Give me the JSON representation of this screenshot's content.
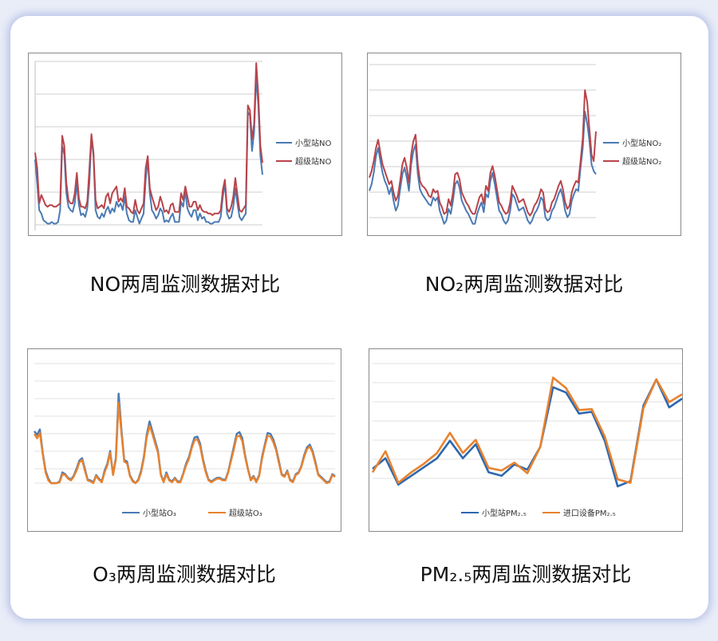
{
  "colors": {
    "blue_dark": "#4a7ab4",
    "red_dark": "#b8444a",
    "blue": "#2e68b0",
    "orange": "#e8822e",
    "grid": "#d2d2d2",
    "grid2": "#e4e4e4"
  },
  "captions": [
    "NO两周监测数据对比",
    "NO₂两周监测数据对比",
    "O₃两周监测数据对比",
    "PM₂.₅两周监测数据对比"
  ],
  "chart_data": [
    {
      "type": "line",
      "title": "",
      "legend_position": "right",
      "grid": true,
      "ylim": [
        0,
        100
      ],
      "series": [
        {
          "name": "小型站NO",
          "color": "#4a7ab4",
          "values": [
            42,
            28,
            12,
            10,
            6,
            5,
            4,
            4,
            5,
            4,
            4,
            5,
            12,
            50,
            45,
            22,
            14,
            12,
            11,
            16,
            28,
            15,
            9,
            10,
            8,
            13,
            28,
            55,
            44,
            12,
            8,
            7,
            10,
            8,
            12,
            14,
            10,
            13,
            11,
            17,
            14,
            16,
            12,
            20,
            10,
            6,
            5,
            5,
            12,
            8,
            4,
            7,
            10,
            30,
            42,
            22,
            12,
            10,
            7,
            9,
            13,
            11,
            5,
            6,
            5,
            8,
            10,
            5,
            5,
            5,
            17,
            14,
            23,
            13,
            10,
            8,
            12,
            12,
            6,
            10,
            7,
            8,
            5,
            5,
            4,
            4,
            5,
            5,
            5,
            8,
            20,
            28,
            10,
            7,
            8,
            14,
            25,
            16,
            8,
            6,
            8,
            10,
            70,
            68,
            47,
            58,
            91,
            74,
            44,
            33
          ]
        },
        {
          "name": "超级站NO",
          "color": "#b8444a",
          "values": [
            46,
            37,
            16,
            21,
            18,
            15,
            14,
            15,
            15,
            14,
            14,
            15,
            16,
            56,
            50,
            28,
            18,
            16,
            16,
            22,
            34,
            19,
            14,
            14,
            13,
            17,
            36,
            57,
            46,
            18,
            13,
            14,
            15,
            13,
            20,
            22,
            16,
            22,
            24,
            26,
            17,
            19,
            17,
            25,
            14,
            13,
            11,
            10,
            18,
            12,
            10,
            13,
            16,
            37,
            44,
            25,
            20,
            16,
            12,
            14,
            20,
            16,
            11,
            12,
            10,
            15,
            16,
            11,
            11,
            11,
            22,
            18,
            26,
            20,
            14,
            14,
            17,
            17,
            12,
            15,
            12,
            11,
            11,
            10,
            10,
            9,
            10,
            10,
            10,
            12,
            24,
            30,
            13,
            11,
            14,
            20,
            31,
            21,
            12,
            11,
            13,
            15,
            74,
            71,
            54,
            63,
            99,
            80,
            50,
            40
          ]
        }
      ]
    },
    {
      "type": "line",
      "title": "",
      "legend_position": "right",
      "grid": true,
      "ylim": [
        0,
        100
      ],
      "series": [
        {
          "name": "小型站NO₂",
          "color": "#4a7ab4",
          "values": [
            24,
            28,
            35,
            45,
            50,
            42,
            35,
            30,
            27,
            22,
            26,
            18,
            12,
            15,
            25,
            34,
            38,
            32,
            24,
            40,
            48,
            52,
            34,
            25,
            22,
            20,
            18,
            16,
            15,
            20,
            18,
            20,
            12,
            8,
            4,
            6,
            13,
            10,
            18,
            28,
            30,
            26,
            18,
            15,
            12,
            10,
            7,
            4,
            4,
            10,
            14,
            17,
            11,
            22,
            20,
            30,
            35,
            28,
            20,
            12,
            10,
            6,
            4,
            6,
            12,
            22,
            20,
            16,
            12,
            13,
            14,
            10,
            6,
            4,
            6,
            10,
            12,
            15,
            20,
            18,
            8,
            6,
            7,
            12,
            14,
            18,
            22,
            25,
            20,
            12,
            8,
            10,
            18,
            22,
            25,
            24,
            38,
            50,
            72,
            65,
            55,
            40,
            36,
            34
          ]
        },
        {
          "name": "超级站NO₂",
          "color": "#b8444a",
          "values": [
            32,
            36,
            42,
            50,
            55,
            47,
            40,
            36,
            32,
            28,
            30,
            23,
            18,
            21,
            30,
            40,
            44,
            38,
            29,
            46,
            54,
            58,
            40,
            30,
            27,
            26,
            24,
            21,
            20,
            25,
            23,
            24,
            17,
            14,
            10,
            11,
            19,
            15,
            23,
            34,
            35,
            31,
            23,
            20,
            17,
            15,
            12,
            10,
            10,
            15,
            20,
            22,
            16,
            27,
            24,
            35,
            39,
            33,
            25,
            17,
            15,
            12,
            10,
            11,
            17,
            27,
            24,
            21,
            17,
            18,
            19,
            15,
            11,
            9,
            11,
            15,
            17,
            20,
            25,
            23,
            13,
            11,
            12,
            17,
            19,
            23,
            27,
            30,
            25,
            17,
            13,
            15,
            23,
            27,
            30,
            29,
            42,
            56,
            85,
            78,
            62,
            46,
            42,
            60
          ]
        }
      ]
    },
    {
      "type": "line",
      "title": "",
      "legend_position": "bottom",
      "grid": true,
      "ylim": [
        0,
        130
      ],
      "series": [
        {
          "name": "小型站O₃",
          "color": "#4a7ab4",
          "values": [
            58,
            54,
            60,
            34,
            14,
            5,
            0,
            0,
            0,
            2,
            12,
            10,
            6,
            4,
            8,
            16,
            25,
            28,
            16,
            4,
            3,
            1,
            9,
            5,
            2,
            14,
            22,
            36,
            10,
            28,
            100,
            60,
            26,
            24,
            9,
            3,
            0,
            4,
            14,
            30,
            54,
            69,
            58,
            47,
            36,
            10,
            2,
            12,
            4,
            2,
            6,
            2,
            2,
            11,
            22,
            29,
            41,
            51,
            52,
            44,
            27,
            14,
            4,
            2,
            4,
            6,
            6,
            4,
            4,
            13,
            27,
            41,
            55,
            57,
            50,
            31,
            16,
            4,
            8,
            2,
            9,
            29,
            43,
            56,
            55,
            49,
            39,
            25,
            10,
            8,
            14,
            4,
            2,
            10,
            12,
            19,
            31,
            40,
            43,
            36,
            24,
            10,
            7,
            4,
            1,
            2,
            10,
            8
          ]
        },
        {
          "name": "超级站O₃",
          "color": "#e8822e",
          "values": [
            55,
            50,
            56,
            32,
            12,
            3,
            0,
            0,
            0,
            1,
            10,
            9,
            5,
            3,
            7,
            14,
            23,
            26,
            14,
            3,
            2,
            0,
            8,
            4,
            1,
            12,
            20,
            34,
            9,
            26,
            90,
            56,
            24,
            22,
            8,
            2,
            0,
            3,
            12,
            28,
            51,
            64,
            55,
            44,
            34,
            9,
            1,
            10,
            3,
            1,
            5,
            1,
            1,
            10,
            20,
            27,
            39,
            48,
            49,
            41,
            25,
            12,
            3,
            1,
            3,
            5,
            5,
            3,
            3,
            12,
            25,
            38,
            52,
            53,
            47,
            29,
            15,
            3,
            7,
            1,
            8,
            27,
            41,
            53,
            52,
            46,
            37,
            23,
            9,
            7,
            13,
            3,
            1,
            9,
            11,
            18,
            29,
            38,
            41,
            34,
            22,
            9,
            6,
            3,
            0,
            1,
            9,
            7
          ]
        }
      ]
    },
    {
      "type": "line",
      "title": "",
      "legend_position": "bottom",
      "grid": true,
      "ylim": [
        0,
        140
      ],
      "series": [
        {
          "name": "小型站PM₂.₅",
          "color": "#2e68b0",
          "values": [
            20,
            32,
            2,
            12,
            22,
            32,
            52,
            32,
            48,
            16,
            12,
            25,
            19,
            45,
            113,
            107,
            83,
            85,
            52,
            0,
            6,
            92,
            122,
            90,
            100
          ]
        },
        {
          "name": "进口设备PM₂.₅",
          "color": "#e8822e",
          "values": [
            16,
            40,
            4,
            16,
            26,
            38,
            61,
            38,
            53,
            21,
            18,
            27,
            15,
            45,
            124,
            112,
            87,
            88,
            57,
            8,
            4,
            89,
            122,
            96,
            105
          ]
        }
      ]
    }
  ]
}
